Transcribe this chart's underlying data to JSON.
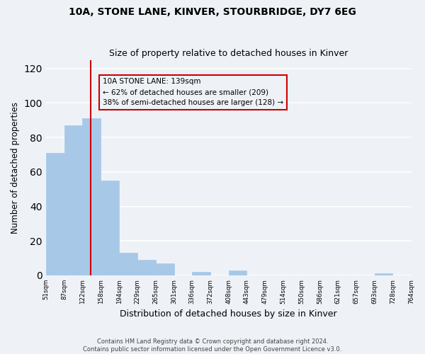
{
  "title1": "10A, STONE LANE, KINVER, STOURBRIDGE, DY7 6EG",
  "title2": "Size of property relative to detached houses in Kinver",
  "xlabel": "Distribution of detached houses by size in Kinver",
  "ylabel": "Number of detached properties",
  "bar_edges": [
    51,
    87,
    122,
    158,
    194,
    229,
    265,
    301,
    336,
    372,
    408,
    443,
    479,
    514,
    550,
    586,
    621,
    657,
    693,
    728,
    764
  ],
  "bar_heights": [
    71,
    87,
    91,
    55,
    13,
    9,
    7,
    0,
    2,
    0,
    3,
    0,
    0,
    0,
    0,
    0,
    0,
    0,
    1,
    0
  ],
  "bar_color": "#a8c8e8",
  "bar_edgecolor": "#a8c8e8",
  "vline_x": 139,
  "vline_color": "#cc0000",
  "annotation_box_text": "10A STONE LANE: 139sqm\n← 62% of detached houses are smaller (209)\n38% of semi-detached houses are larger (128) →",
  "box_edge_color": "#cc0000",
  "ylim": [
    0,
    125
  ],
  "yticks": [
    0,
    20,
    40,
    60,
    80,
    100,
    120
  ],
  "tick_labels": [
    "51sqm",
    "87sqm",
    "122sqm",
    "158sqm",
    "194sqm",
    "229sqm",
    "265sqm",
    "301sqm",
    "336sqm",
    "372sqm",
    "408sqm",
    "443sqm",
    "479sqm",
    "514sqm",
    "550sqm",
    "586sqm",
    "621sqm",
    "657sqm",
    "693sqm",
    "728sqm",
    "764sqm"
  ],
  "footer1": "Contains HM Land Registry data © Crown copyright and database right 2024.",
  "footer2": "Contains public sector information licensed under the Open Government Licence v3.0.",
  "bg_color": "#eef2f7",
  "grid_color": "#ffffff"
}
